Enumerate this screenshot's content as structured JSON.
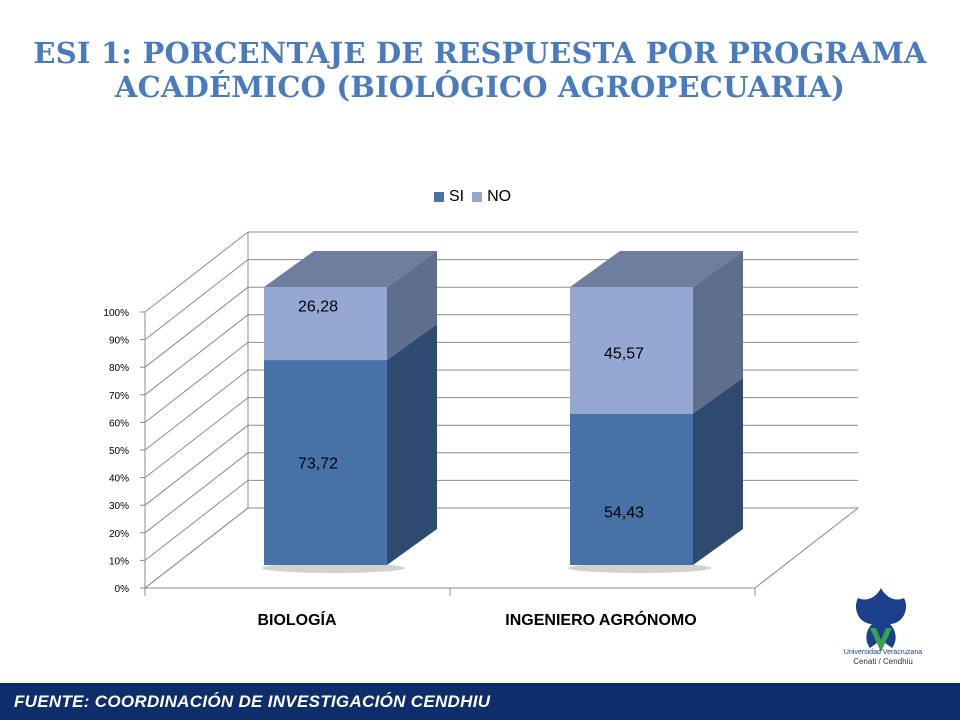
{
  "title": {
    "line1": "ESI  1: PORCENTAJE DE RESPUESTA POR PROGRAMA",
    "line2": "ACADÉMICO (BIOLÓGICO AGROPECUARIA)"
  },
  "colors": {
    "title": "#4a7bbd",
    "si": "#4672a8",
    "no": "#94a8d2",
    "footer_bg": "#0d2d6b"
  },
  "chart_data": {
    "type": "bar",
    "stacked": true,
    "three_d": true,
    "categories": [
      "BIOLOGÍA",
      "INGENIERO AGRÓNOMO"
    ],
    "series": [
      {
        "name": "SI",
        "values": [
          73.72,
          54.43
        ],
        "labels": [
          "73,72",
          "54,43"
        ]
      },
      {
        "name": "NO",
        "values": [
          26.28,
          45.57
        ],
        "labels": [
          "26,28",
          "45,57"
        ]
      }
    ],
    "yticks": [
      "0%",
      "10%",
      "20%",
      "30%",
      "40%",
      "50%",
      "60%",
      "70%",
      "80%",
      "90%",
      "100%"
    ],
    "ylim": [
      0,
      100
    ],
    "legend_position": "top",
    "grid": true
  },
  "footer": {
    "text": "FUENTE:  COORDINACIÓN DE   INVESTIGACIÓN CENDHIU"
  },
  "logo": {
    "line1": "Universidad Veracruzana",
    "line2": "Cenati / Cendhiu"
  }
}
